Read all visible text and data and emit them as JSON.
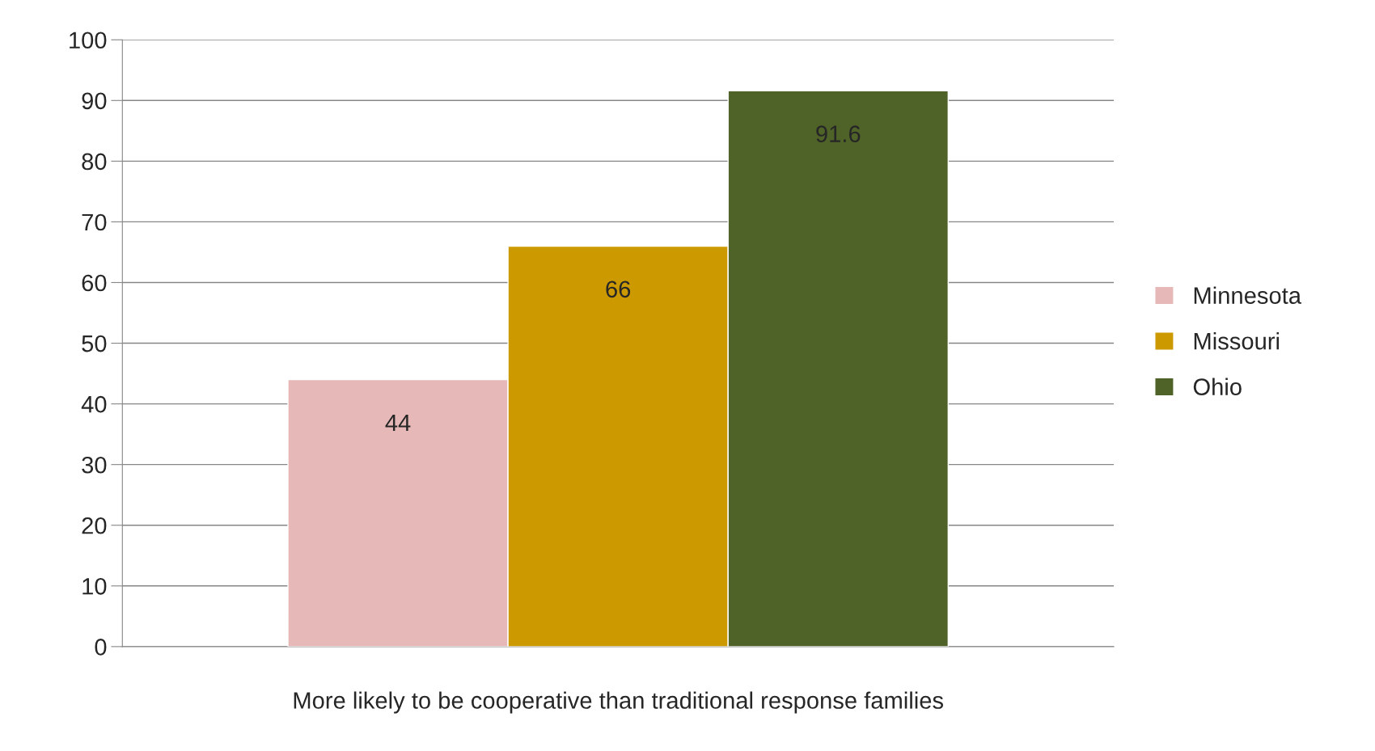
{
  "chart_data": {
    "type": "bar",
    "categories": [
      "More likely to be cooperative than traditional response families"
    ],
    "series": [
      {
        "name": "Minnesota",
        "color": "#e6b8b7",
        "values": [
          44
        ]
      },
      {
        "name": "Missouri",
        "color": "#cc9900",
        "values": [
          66
        ]
      },
      {
        "name": "Ohio",
        "color": "#4f6228",
        "values": [
          91.6
        ]
      }
    ],
    "ylim": [
      0,
      100
    ],
    "yticks": [
      0,
      10,
      20,
      30,
      40,
      50,
      60,
      70,
      80,
      90,
      100
    ],
    "grid": "y",
    "legend": "right",
    "data_labels": true
  }
}
